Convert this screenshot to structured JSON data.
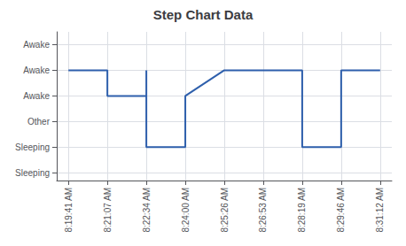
{
  "chart_data": {
    "type": "line",
    "title": "Step Chart Data",
    "x": [
      0,
      1,
      1,
      2,
      2,
      2,
      3,
      3,
      4,
      6,
      6,
      7,
      7,
      8
    ],
    "values": [
      4,
      4,
      3,
      3,
      4,
      1,
      1,
      3,
      4,
      4,
      1,
      1,
      4,
      4
    ],
    "color": "#2E5FAC",
    "xlim": [
      -0.3,
      8.3
    ],
    "xticks": [
      {
        "value": 0,
        "label": "8:19:41 AM"
      },
      {
        "value": 1,
        "label": "8:21:07 AM"
      },
      {
        "value": 2,
        "label": "8:22:34 AM"
      },
      {
        "value": 3,
        "label": "8:24:00 AM"
      },
      {
        "value": 4,
        "label": "8:25:26 AM"
      },
      {
        "value": 5,
        "label": "8:26:53 AM"
      },
      {
        "value": 6,
        "label": "8:28:19 AM"
      },
      {
        "value": 7,
        "label": "8:29:46 AM"
      },
      {
        "value": 8,
        "label": "8:31:12 AM"
      }
    ],
    "ylim": [
      -0.3,
      5.5
    ],
    "yticks": [
      {
        "value": 0,
        "label": "Sleeping"
      },
      {
        "value": 1,
        "label": "Sleeping"
      },
      {
        "value": 2,
        "label": "Other"
      },
      {
        "value": 3,
        "label": "Awake"
      },
      {
        "value": 4,
        "label": "Awake"
      },
      {
        "value": 5,
        "label": "Awake"
      }
    ],
    "grid": true
  }
}
